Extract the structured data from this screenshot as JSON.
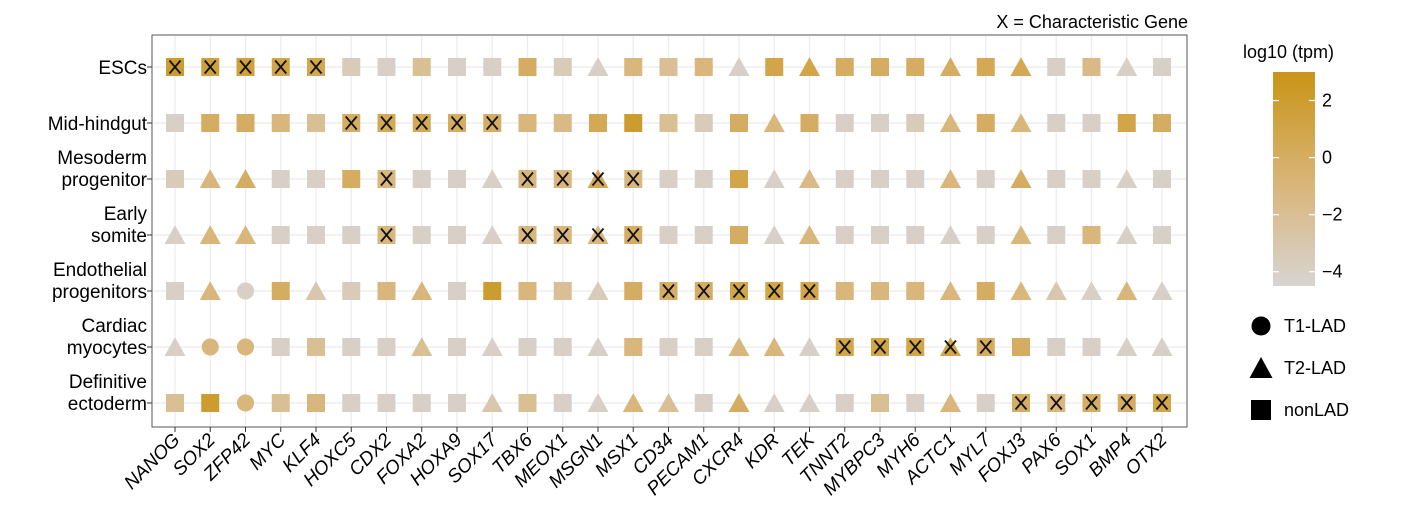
{
  "chart_data": {
    "type": "dot-matrix",
    "annotation": "X = Characteristic Gene",
    "genes": [
      "NANOG",
      "SOX2",
      "ZFP42",
      "MYC",
      "KLF4",
      "HOXC5",
      "CDX2",
      "FOXA2",
      "HOXA9",
      "SOX17",
      "TBX6",
      "MEOX1",
      "MSGN1",
      "MSX1",
      "CD34",
      "PECAM1",
      "CXCR4",
      "KDR",
      "TEK",
      "TNNT2",
      "MYBPC3",
      "MYH6",
      "ACTC1",
      "MYL7",
      "FOXJ3",
      "PAX6",
      "SOX1",
      "BMP4",
      "OTX2"
    ],
    "cell_types": [
      {
        "lines": [
          "ESCs"
        ]
      },
      {
        "lines": [
          "Mid-hindgut"
        ]
      },
      {
        "lines": [
          "Mesoderm",
          "progenitor"
        ]
      },
      {
        "lines": [
          "Early",
          "somite"
        ]
      },
      {
        "lines": [
          "Endothelial",
          "progenitors"
        ]
      },
      {
        "lines": [
          "Cardiac",
          "myocytes"
        ]
      },
      {
        "lines": [
          "Definitive",
          "ectoderm"
        ]
      }
    ],
    "shape_codes": {
      "C": "T1-LAD",
      "T": "T2-LAD",
      "S": "nonLAD"
    },
    "rows": [
      {
        "shapes": "SSSSSSSSSSSSTSSSTSTSSSTSTSSTS",
        "values": [
          2,
          1.5,
          1.5,
          1,
          0.8,
          -3.5,
          -4,
          -2,
          -4,
          -4,
          0,
          -3.5,
          -4,
          -1,
          -2,
          -1,
          -4,
          1,
          1,
          0,
          0,
          0,
          0,
          0.5,
          0.5,
          -4,
          -1.5,
          -4,
          -4
        ],
        "characteristic": [
          0,
          1,
          2,
          3,
          4
        ]
      },
      {
        "shapes": "SSSSSSSSSSSSSSSSSTSSSSTSTSSSS",
        "values": [
          -4,
          0,
          0,
          -1,
          -2,
          0,
          0.5,
          0.5,
          0,
          0,
          -1,
          -1.5,
          0.5,
          2,
          -2,
          -3.5,
          0,
          -1,
          0,
          -4,
          -4,
          -3.5,
          -1,
          0,
          -1,
          -4,
          -4,
          1,
          0
        ],
        "characteristic": [
          5,
          6,
          7,
          8,
          9
        ]
      },
      {
        "shapes": "STTSSSSSSTSSTSSSSTTSSSTSTSSTS",
        "values": [
          -3.5,
          -1,
          0,
          -4,
          -4,
          0,
          -1,
          -4,
          -4,
          -4,
          -1,
          -1,
          0.5,
          -1,
          -4,
          -4,
          1,
          -4,
          -1.5,
          -4,
          -4,
          -4,
          -1,
          -4,
          0,
          -4,
          -4,
          -4,
          -4
        ],
        "characteristic": [
          6,
          10,
          11,
          12,
          13
        ]
      },
      {
        "shapes": "TTTSSSSSSTSSTSSSSTTSSSTSTSSTS",
        "values": [
          -4,
          -1,
          -1,
          -4,
          -4,
          -4,
          -1,
          -4,
          -4,
          -4,
          -1,
          -1,
          -1,
          0,
          -4,
          -4,
          0,
          -4,
          -1,
          -4,
          -4,
          -4,
          -4,
          -4,
          -1,
          -4,
          -1,
          -4,
          -4
        ],
        "characteristic": [
          6,
          10,
          11,
          12,
          13
        ]
      },
      {
        "shapes": "STCSTSSTSSSSTSSSSSSSSSTSTTTTT",
        "values": [
          -4,
          -1,
          -4,
          0,
          -3,
          -3.5,
          -1,
          -1,
          -4,
          2,
          -1,
          -2,
          -3.5,
          0,
          0,
          0,
          1,
          1,
          1,
          -1,
          -1,
          -1,
          -1,
          0,
          -1,
          -3,
          -4,
          -1,
          -4
        ],
        "characteristic": [
          14,
          15,
          16,
          17,
          18
        ]
      },
      {
        "shapes": "TCCSSSSTSTSSTSSSTTTSSSTSSSSTT",
        "values": [
          -4,
          -1,
          -1,
          -4,
          -2,
          -4,
          -4,
          -2,
          -4,
          -4,
          -4,
          -4,
          -4,
          -1,
          -4,
          -4,
          -1,
          -1,
          -4,
          1,
          1,
          1,
          1,
          0,
          0,
          -4,
          -4,
          -4,
          -4
        ],
        "characteristic": [
          19,
          20,
          21,
          22,
          23
        ]
      },
      {
        "shapes": "SSCSSSSSSTSSTTTSTTTSSSTSSSSSS",
        "values": [
          -2,
          2,
          -1,
          -2,
          -1,
          -4,
          -4,
          -4,
          -4,
          -3,
          -2,
          -4,
          -4,
          -1,
          -2,
          -4,
          0,
          -4,
          -4,
          -4,
          -2,
          -4,
          -1,
          -4,
          0,
          -1,
          0,
          0,
          1
        ],
        "characteristic": [
          24,
          25,
          26,
          27,
          28
        ]
      }
    ],
    "color_scale": {
      "title": "log10 (tpm)",
      "ticks": [
        2,
        0,
        -2,
        -4
      ],
      "min": -4.5,
      "max": 3,
      "low_color": "#d8d4d2",
      "mid_color": "#d9b77e",
      "high_color": "#c99416"
    },
    "legend_shapes": [
      {
        "shape": "circle",
        "label": "T1-LAD"
      },
      {
        "shape": "triangle",
        "label": "T2-LAD"
      },
      {
        "shape": "square",
        "label": "nonLAD"
      }
    ],
    "grid": true
  }
}
